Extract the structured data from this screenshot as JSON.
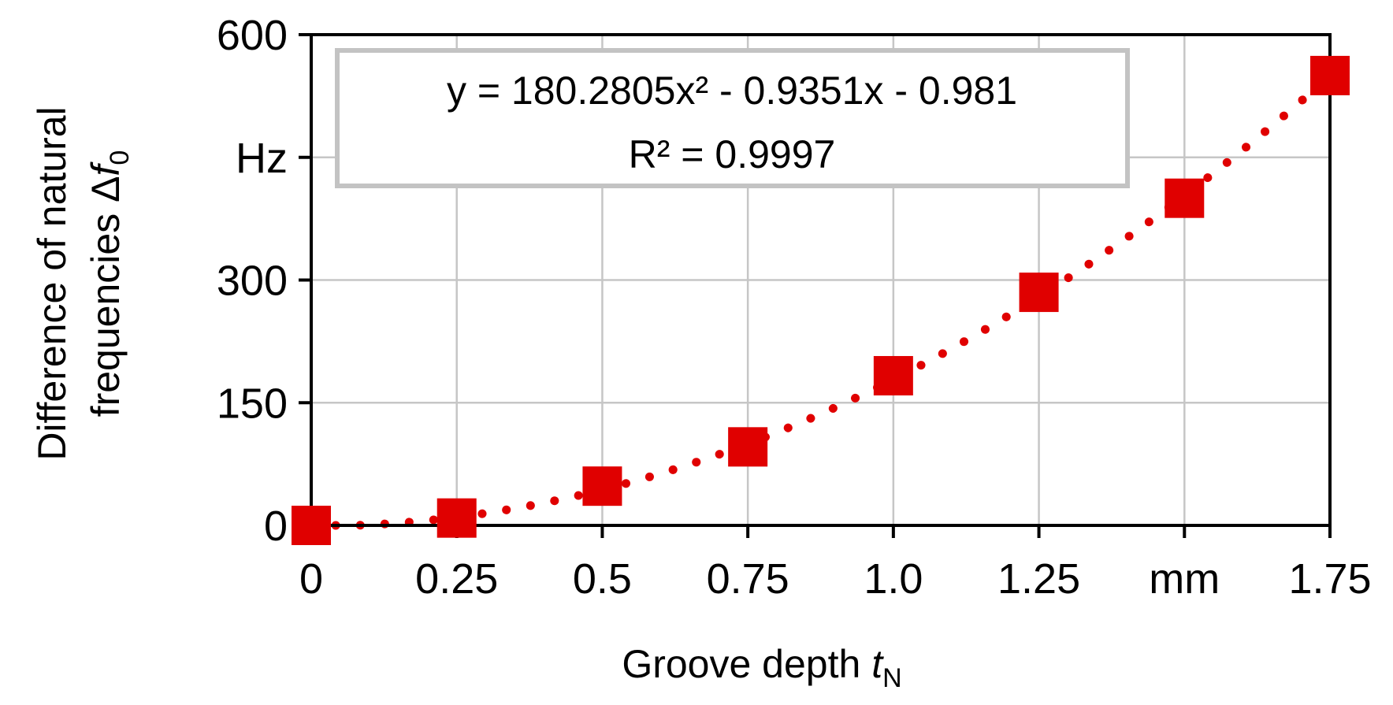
{
  "chart_data": {
    "type": "scatter",
    "x": [
      0,
      0.25,
      0.5,
      0.75,
      1.0,
      1.25,
      1.5,
      1.75
    ],
    "y_ticks": [
      0,
      150,
      300,
      450,
      600
    ],
    "y_tick_labels": [
      "0",
      "150",
      "300",
      "Hz",
      "600"
    ],
    "x_tick_labels": [
      "0",
      "0.25",
      "0.5",
      "0.75",
      "1.0",
      "1.25",
      "mm",
      "1.75"
    ],
    "xlim": [
      0,
      1.75
    ],
    "ylim": [
      0,
      600
    ],
    "grid": true,
    "xlabel": {
      "main": "Groove depth ",
      "var": "t",
      "sub": "N"
    },
    "ylabel": {
      "line1": "Difference of natural",
      "line2_main": "frequencies Δ",
      "line2_var": "f",
      "line2_sub": "0"
    },
    "series": [
      {
        "marker": "square",
        "color": "#e00000",
        "points": [
          {
            "x": 0,
            "y": 0
          },
          {
            "x": 0.25,
            "y": 9
          },
          {
            "x": 0.5,
            "y": 48
          },
          {
            "x": 0.75,
            "y": 96
          },
          {
            "x": 1.0,
            "y": 183
          },
          {
            "x": 1.25,
            "y": 285
          },
          {
            "x": 1.5,
            "y": 400
          },
          {
            "x": 1.75,
            "y": 550
          }
        ]
      }
    ],
    "trendline": {
      "type": "polynomial",
      "order": 2,
      "coefficients": [
        180.2805,
        -0.9351,
        -0.981
      ],
      "style": "dotted",
      "color": "#e00000",
      "equation_label": "y = 180.2805x² - 0.9351x - 0.981",
      "r2_label": "R² = 0.9997"
    }
  }
}
